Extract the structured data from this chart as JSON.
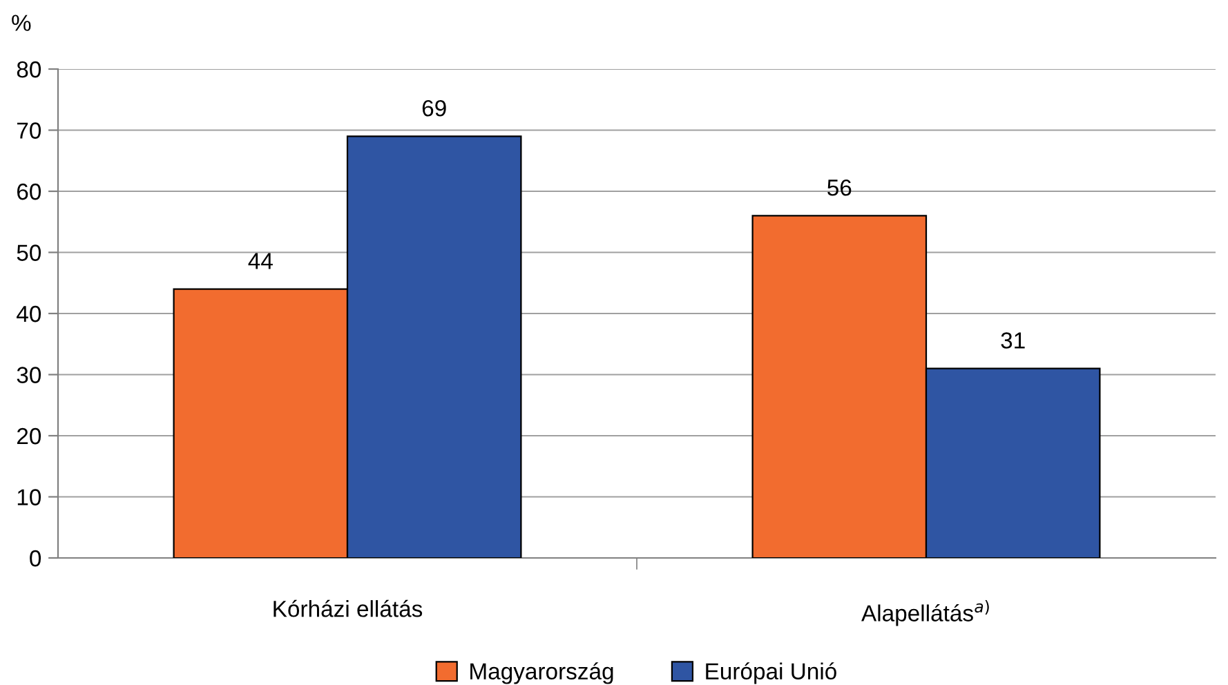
{
  "chart_data": {
    "type": "bar",
    "ylabel": "%",
    "categories": [
      "Kórházi ellátás",
      "Alapellátás$^{a)}$"
    ],
    "series": [
      {
        "name": "Magyarország",
        "color": "#f26c2f",
        "values": [
          44,
          56
        ]
      },
      {
        "name": "Európai Unió",
        "color": "#2f55a3",
        "values": [
          69,
          31
        ]
      }
    ],
    "ylim": [
      0,
      80
    ],
    "yticks": [
      0,
      10,
      20,
      30,
      40,
      50,
      60,
      70,
      80
    ],
    "grid": "y",
    "legend": "bottom",
    "data_labels": true
  }
}
